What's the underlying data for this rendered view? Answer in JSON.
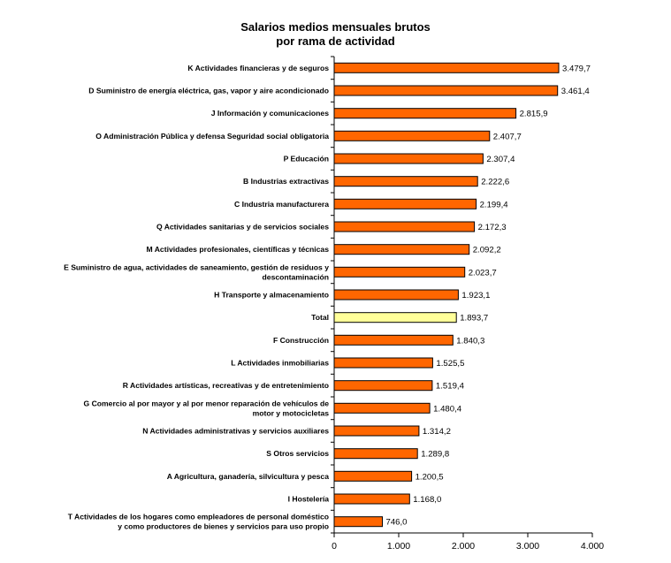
{
  "chart_data": {
    "type": "bar",
    "orientation": "horizontal",
    "title_line1": "Salarios medios mensuales brutos",
    "title_line2": "por rama de actividad",
    "xlabel": "",
    "ylabel": "",
    "xlim": [
      0,
      4000
    ],
    "x_ticks": [
      "0",
      "1.000",
      "2.000",
      "3.000",
      "4.000"
    ],
    "grid": false,
    "legend": "none",
    "colors": {
      "bar": "#FF6600",
      "highlight": "#FFFF99",
      "edge": "#000000"
    },
    "categories": [
      [
        "K  Actividades financieras y de seguros"
      ],
      [
        "D  Suministro de energía eléctrica, gas, vapor y aire acondicionado"
      ],
      [
        "J  Información y comunicaciones"
      ],
      [
        "O  Administración Pública y defensa Seguridad social obligatoria"
      ],
      [
        "P  Educación"
      ],
      [
        "B  Industrias extractivas"
      ],
      [
        "C  Industria manufacturera"
      ],
      [
        "Q  Actividades sanitarias y de servicios sociales"
      ],
      [
        "M  Actividades profesionales, científicas y técnicas"
      ],
      [
        "E  Suministro de agua, actividades de saneamiento, gestión de residuos y",
        "descontaminación"
      ],
      [
        "H  Transporte y almacenamiento"
      ],
      [
        "Total"
      ],
      [
        "F  Construcción"
      ],
      [
        "L  Actividades inmobiliarias"
      ],
      [
        "R  Actividades artísticas, recreativas y de entretenimiento"
      ],
      [
        "G  Comercio al por mayor y al por menor reparación de vehículos de",
        "motor y motocicletas"
      ],
      [
        "N  Actividades administrativas y servicios auxiliares"
      ],
      [
        "S  Otros servicios"
      ],
      [
        "A  Agricultura, ganadería, silvicultura y pesca"
      ],
      [
        "I  Hostelería"
      ],
      [
        "T  Actividades de los hogares como empleadores de personal doméstico",
        "y como productores de bienes y servicios para uso propio"
      ]
    ],
    "values": [
      3479.7,
      3461.4,
      2815.9,
      2407.7,
      2307.4,
      2222.6,
      2199.4,
      2172.3,
      2092.2,
      2023.7,
      1923.1,
      1893.7,
      1840.3,
      1525.5,
      1519.4,
      1480.4,
      1314.2,
      1289.8,
      1200.5,
      1168.0,
      746.0
    ],
    "value_labels": [
      "3.479,7",
      "3.461,4",
      "2.815,9",
      "2.407,7",
      "2.307,4",
      "2.222,6",
      "2.199,4",
      "2.172,3",
      "2.092,2",
      "2.023,7",
      "1.923,1",
      "1.893,7",
      "1.840,3",
      "1.525,5",
      "1.519,4",
      "1.480,4",
      "1.314,2",
      "1.289,8",
      "1.200,5",
      "1.168,0",
      "746,0"
    ],
    "highlighted_category": "Total"
  }
}
